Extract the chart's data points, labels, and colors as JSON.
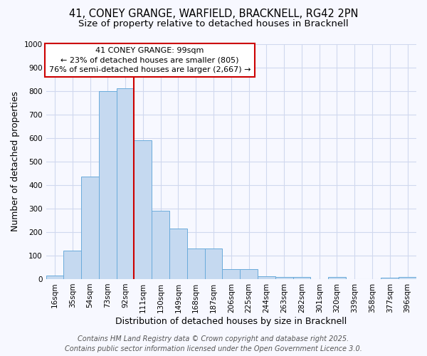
{
  "title_line1": "41, CONEY GRANGE, WARFIELD, BRACKNELL, RG42 2PN",
  "title_line2": "Size of property relative to detached houses in Bracknell",
  "xlabel": "Distribution of detached houses by size in Bracknell",
  "ylabel": "Number of detached properties",
  "bin_labels": [
    "16sqm",
    "35sqm",
    "54sqm",
    "73sqm",
    "92sqm",
    "111sqm",
    "130sqm",
    "149sqm",
    "168sqm",
    "187sqm",
    "206sqm",
    "225sqm",
    "244sqm",
    "263sqm",
    "282sqm",
    "301sqm",
    "320sqm",
    "339sqm",
    "358sqm",
    "377sqm",
    "396sqm"
  ],
  "bar_values": [
    15,
    120,
    435,
    800,
    810,
    590,
    290,
    215,
    130,
    130,
    42,
    42,
    12,
    10,
    10,
    0,
    10,
    0,
    0,
    5,
    8
  ],
  "bar_color": "#c5d9f0",
  "bar_edgecolor": "#6aabdb",
  "vline_color": "#cc0000",
  "vline_bin_index": 4,
  "annotation_title": "41 CONEY GRANGE: 99sqm",
  "annotation_line1": "← 23% of detached houses are smaller (805)",
  "annotation_line2": "76% of semi-detached houses are larger (2,667) →",
  "annotation_box_facecolor": "#ffffff",
  "annotation_box_edgecolor": "#cc0000",
  "ylim": [
    0,
    1000
  ],
  "yticks": [
    0,
    100,
    200,
    300,
    400,
    500,
    600,
    700,
    800,
    900,
    1000
  ],
  "footer_line1": "Contains HM Land Registry data © Crown copyright and database right 2025.",
  "footer_line2": "Contains public sector information licensed under the Open Government Licence 3.0.",
  "bg_color": "#f7f8ff",
  "plot_bg_color": "#f7f8ff",
  "grid_color": "#d0d8ee",
  "title_fontsize": 10.5,
  "subtitle_fontsize": 9.5,
  "axis_label_fontsize": 9,
  "tick_fontsize": 7.5,
  "footer_fontsize": 7,
  "annotation_fontsize": 8
}
